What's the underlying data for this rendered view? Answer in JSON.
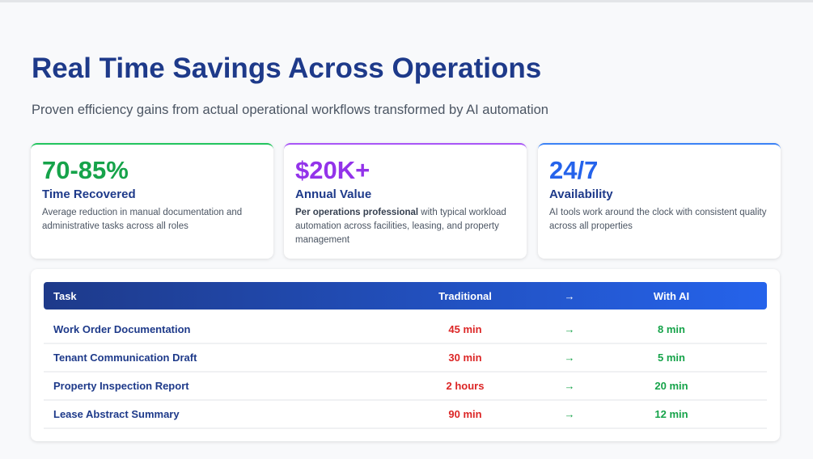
{
  "header": {
    "title": "Real Time Savings Across Operations",
    "subtitle": "Proven efficiency gains from actual operational workflows transformed by AI automation"
  },
  "cards": [
    {
      "value": "70-85%",
      "label": "Time Recovered",
      "desc_bold": "",
      "desc": "Average reduction in manual documentation and administrative tasks across all roles",
      "color": "#16a34a"
    },
    {
      "value": "$20K+",
      "label": "Annual Value",
      "desc_bold": "Per operations professional",
      "desc": " with typical workload automation across facilities, leasing, and property management",
      "color": "#9333ea"
    },
    {
      "value": "24/7",
      "label": "Availability",
      "desc_bold": "",
      "desc": "AI tools work around the clock with consistent quality across all properties",
      "color": "#2563eb"
    }
  ],
  "table": {
    "headers": [
      "Task",
      "Traditional",
      "→",
      "With AI"
    ],
    "rows": [
      [
        "Work Order Documentation",
        "45 min",
        "→",
        "8 min"
      ],
      [
        "Tenant Communication Draft",
        "30 min",
        "→",
        "5 min"
      ],
      [
        "Property Inspection Report",
        "2 hours",
        "→",
        "20 min"
      ],
      [
        "Lease Abstract Summary",
        "90 min",
        "→",
        "12 min"
      ]
    ]
  }
}
